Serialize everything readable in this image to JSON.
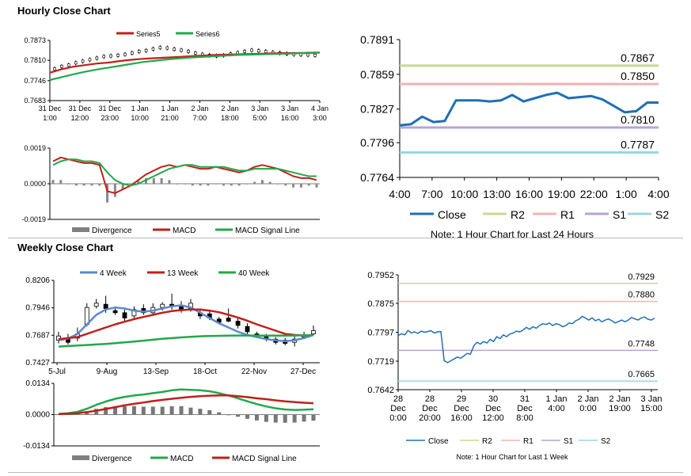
{
  "sections": {
    "hourly_title": "Hourly Close Chart",
    "weekly_title": "Weekly Close Chart"
  },
  "colors": {
    "red": "#c0201a",
    "green": "#22a84a",
    "blue": "#1f6fb4",
    "grey": "#808080",
    "r2": "#c8d98e",
    "r1": "#f0b4b0",
    "s1": "#b4a4d0",
    "s2": "#9ad4e4"
  },
  "chart_data": [
    {
      "id": "hourly_price",
      "type": "line",
      "legend": [
        "Series5",
        "Series6"
      ],
      "x_ticks": [
        [
          "31 Dec",
          "1:00"
        ],
        [
          "31 Dec",
          "12:00"
        ],
        [
          "31 Dec",
          "23:00"
        ],
        [
          "1 Jan",
          "10:00"
        ],
        [
          "1 Jan",
          "21:00"
        ],
        [
          "2 Jan",
          "7:00"
        ],
        [
          "2 Jan",
          "18:00"
        ],
        [
          "3 Jan",
          "5:00"
        ],
        [
          "3 Jan",
          "16:00"
        ],
        [
          "4 Jan",
          "3:00"
        ]
      ],
      "y_ticks": [
        "0.7873",
        "0.7810",
        "0.7746",
        "0.7683"
      ],
      "ylim": [
        0.7683,
        0.7873
      ],
      "series": [
        {
          "name": "Series5",
          "color": "#c0201a",
          "values": [
            0.7771,
            0.7782,
            0.779,
            0.7795,
            0.78,
            0.7803,
            0.7808,
            0.7812,
            0.7815,
            0.7817,
            0.7819,
            0.7821,
            0.7823,
            0.7825,
            0.7827,
            0.7828,
            0.7829,
            0.783,
            0.7831,
            0.7832,
            0.7833,
            0.7833,
            0.7834,
            0.7835
          ]
        },
        {
          "name": "Series6",
          "color": "#22a84a",
          "values": [
            0.7748,
            0.7757,
            0.7766,
            0.7774,
            0.7781,
            0.7787,
            0.7793,
            0.7799,
            0.7805,
            0.7809,
            0.7813,
            0.7816,
            0.7819,
            0.7821,
            0.7823,
            0.7825,
            0.7827,
            0.7828,
            0.7829,
            0.783,
            0.7831,
            0.7832,
            0.7833,
            0.7834
          ]
        }
      ],
      "candles": [
        0.7783,
        0.7791,
        0.7795,
        0.7802,
        0.7807,
        0.7812,
        0.7817,
        0.7822,
        0.7824,
        0.7826,
        0.7829,
        0.7833,
        0.7838,
        0.7841,
        0.7846,
        0.785,
        0.7849,
        0.7845,
        0.7842,
        0.7838,
        0.7833,
        0.7829,
        0.7826,
        0.7824,
        0.7826,
        0.783,
        0.7834,
        0.7838,
        0.7842,
        0.784,
        0.7838,
        0.7835,
        0.7833,
        0.7831,
        0.7829,
        0.7828,
        0.7827,
        0.7826
      ]
    },
    {
      "id": "hourly_macd",
      "type": "line",
      "legend": [
        "Divergence",
        "MACD",
        "MACD Signal Line"
      ],
      "y_ticks": [
        "0.0019",
        "0.0000",
        "-0.0019"
      ],
      "ylim": [
        -0.0019,
        0.0019
      ],
      "series": [
        {
          "name": "MACD",
          "color": "#c0201a",
          "values": [
            0.0012,
            0.0014,
            0.0013,
            0.0012,
            0.0011,
            0.0011,
            0.001,
            -0.0004,
            -0.0005,
            -0.0003,
            -0.0001,
            0.0002,
            0.0005,
            0.0007,
            0.0009,
            0.001,
            0.0009,
            0.001,
            0.0009,
            0.0008,
            0.0008,
            0.0009,
            0.0008,
            0.0007,
            0.0006,
            0.0007,
            0.0009,
            0.001,
            0.0009,
            0.0008,
            0.0006,
            0.0004,
            0.0003,
            0.0003,
            0.0002
          ]
        },
        {
          "name": "MACD Signal Line",
          "color": "#22a84a",
          "values": [
            0.001,
            0.0012,
            0.0013,
            0.0013,
            0.0012,
            0.0012,
            0.0011,
            0.0006,
            0.0002,
            0.0,
            -0.0001,
            0.0,
            0.0002,
            0.0004,
            0.0006,
            0.0008,
            0.0009,
            0.001,
            0.001,
            0.0009,
            0.0009,
            0.0009,
            0.0009,
            0.0008,
            0.0007,
            0.0007,
            0.0008,
            0.0008,
            0.0008,
            0.0008,
            0.0007,
            0.0006,
            0.0005,
            0.0004,
            0.0004
          ]
        },
        {
          "name": "Divergence",
          "color": "#808080",
          "values": [
            0.0002,
            0.0002,
            0.0,
            -0.0001,
            -0.0001,
            -0.0001,
            -0.0001,
            -0.001,
            -0.0007,
            -0.0003,
            0.0,
            0.0002,
            0.0003,
            0.0003,
            0.0003,
            0.0002,
            0.0,
            0.0,
            -0.0001,
            -0.0001,
            -0.0001,
            0.0,
            -0.0001,
            -0.0001,
            -0.0001,
            0.0,
            0.0001,
            0.0002,
            0.0001,
            0.0,
            -0.0001,
            -0.0002,
            -0.0002,
            -0.0001,
            -0.0002
          ]
        }
      ]
    },
    {
      "id": "hourly_levels",
      "type": "line",
      "legend": [
        "Close",
        "R2",
        "R1",
        "S1",
        "S2"
      ],
      "note": "Note: 1 Hour Chart for Last 24 Hours",
      "x_ticks": [
        "4:00",
        "7:00",
        "10:00",
        "13:00",
        "16:00",
        "19:00",
        "22:00",
        "1:00",
        "4:00"
      ],
      "y_ticks": [
        "0.7891",
        "0.7859",
        "0.7827",
        "0.7796",
        "0.7764"
      ],
      "ylim": [
        0.7764,
        0.7891
      ],
      "levels": [
        {
          "name": "R2",
          "value": 0.7867,
          "label": "0.7867",
          "color": "#c8d98e"
        },
        {
          "name": "R1",
          "value": 0.785,
          "label": "0.7850",
          "color": "#f0b4b0"
        },
        {
          "name": "S1",
          "value": 0.781,
          "label": "0.7810",
          "color": "#b4a4d0"
        },
        {
          "name": "S2",
          "value": 0.7787,
          "label": "0.7787",
          "color": "#9ad4e4"
        }
      ],
      "series": [
        {
          "name": "Close",
          "color": "#1f6fb4",
          "values": [
            0.7812,
            0.7813,
            0.782,
            0.7815,
            0.7816,
            0.7835,
            0.7835,
            0.7835,
            0.7834,
            0.7835,
            0.784,
            0.7834,
            0.7837,
            0.784,
            0.7842,
            0.7837,
            0.7838,
            0.7839,
            0.7836,
            0.783,
            0.7824,
            0.7825,
            0.7833,
            0.7833
          ]
        }
      ]
    },
    {
      "id": "weekly_price",
      "type": "line",
      "legend": [
        "4 Week",
        "13 Week",
        "40 Week"
      ],
      "x_ticks": [
        "5-Jul",
        "9-Aug",
        "13-Sep",
        "18-Oct",
        "22-Nov",
        "27-Dec"
      ],
      "y_ticks": [
        "0.8206",
        "0.7946",
        "0.7687",
        "0.7427"
      ],
      "ylim": [
        0.7427,
        0.8206
      ],
      "series": [
        {
          "name": "4 Week",
          "color": "#5a8ad0",
          "values": [
            0.764,
            0.7655,
            0.77,
            0.779,
            0.788,
            0.793,
            0.795,
            0.794,
            0.792,
            0.791,
            0.792,
            0.794,
            0.796,
            0.797,
            0.795,
            0.79,
            0.785,
            0.78,
            0.776,
            0.772,
            0.769,
            0.767,
            0.765,
            0.764,
            0.763,
            0.764,
            0.766,
            0.769
          ]
        },
        {
          "name": "13 Week",
          "color": "#c0201a",
          "values": [
            0.765,
            0.766,
            0.767,
            0.77,
            0.773,
            0.776,
            0.779,
            0.7815,
            0.784,
            0.786,
            0.788,
            0.79,
            0.7915,
            0.7925,
            0.793,
            0.793,
            0.792,
            0.7905,
            0.788,
            0.7855,
            0.7825,
            0.779,
            0.776,
            0.773,
            0.77,
            0.769,
            0.7685,
            0.769
          ]
        },
        {
          "name": "40 Week",
          "color": "#22a84a",
          "values": [
            0.758,
            0.7585,
            0.759,
            0.7595,
            0.76,
            0.7605,
            0.7612,
            0.762,
            0.7628,
            0.7636,
            0.7645,
            0.7653,
            0.766,
            0.7667,
            0.7672,
            0.7677,
            0.768,
            0.7682,
            0.7684,
            0.7685,
            0.7685,
            0.7684,
            0.7683,
            0.7683,
            0.7684,
            0.7685,
            0.7686,
            0.7687
          ]
        }
      ],
      "candles": [
        {
          "o": 0.764,
          "c": 0.768,
          "h": 0.772,
          "l": 0.761
        },
        {
          "o": 0.765,
          "c": 0.762,
          "h": 0.77,
          "l": 0.76
        },
        {
          "o": 0.766,
          "c": 0.77,
          "h": 0.776,
          "l": 0.763
        },
        {
          "o": 0.779,
          "c": 0.795,
          "h": 0.799,
          "l": 0.777
        },
        {
          "o": 0.796,
          "c": 0.799,
          "h": 0.803,
          "l": 0.794
        },
        {
          "o": 0.798,
          "c": 0.794,
          "h": 0.806,
          "l": 0.79
        },
        {
          "o": 0.792,
          "c": 0.79,
          "h": 0.796,
          "l": 0.788
        },
        {
          "o": 0.79,
          "c": 0.785,
          "h": 0.793,
          "l": 0.782
        },
        {
          "o": 0.787,
          "c": 0.793,
          "h": 0.796,
          "l": 0.784
        },
        {
          "o": 0.794,
          "c": 0.79,
          "h": 0.798,
          "l": 0.788
        },
        {
          "o": 0.79,
          "c": 0.795,
          "h": 0.799,
          "l": 0.787
        },
        {
          "o": 0.795,
          "c": 0.798,
          "h": 0.8,
          "l": 0.792
        },
        {
          "o": 0.798,
          "c": 0.796,
          "h": 0.808,
          "l": 0.793
        },
        {
          "o": 0.796,
          "c": 0.792,
          "h": 0.801,
          "l": 0.79
        },
        {
          "o": 0.794,
          "c": 0.799,
          "h": 0.803,
          "l": 0.791
        },
        {
          "o": 0.79,
          "c": 0.787,
          "h": 0.793,
          "l": 0.784
        },
        {
          "o": 0.789,
          "c": 0.785,
          "h": 0.791,
          "l": 0.783
        },
        {
          "o": 0.784,
          "c": 0.781,
          "h": 0.786,
          "l": 0.78
        },
        {
          "o": 0.785,
          "c": 0.782,
          "h": 0.794,
          "l": 0.781
        },
        {
          "o": 0.782,
          "c": 0.778,
          "h": 0.785,
          "l": 0.775
        },
        {
          "o": 0.777,
          "c": 0.772,
          "h": 0.78,
          "l": 0.77
        },
        {
          "o": 0.77,
          "c": 0.768,
          "h": 0.772,
          "l": 0.766
        },
        {
          "o": 0.768,
          "c": 0.765,
          "h": 0.77,
          "l": 0.763
        },
        {
          "o": 0.765,
          "c": 0.762,
          "h": 0.767,
          "l": 0.76
        },
        {
          "o": 0.764,
          "c": 0.761,
          "h": 0.766,
          "l": 0.759
        },
        {
          "o": 0.762,
          "c": 0.765,
          "h": 0.769,
          "l": 0.758
        },
        {
          "o": 0.767,
          "c": 0.769,
          "h": 0.772,
          "l": 0.765
        },
        {
          "o": 0.77,
          "c": 0.773,
          "h": 0.778,
          "l": 0.769
        }
      ]
    },
    {
      "id": "weekly_macd",
      "type": "line",
      "legend": [
        "Divergence",
        "MACD",
        "MACD Signal Line"
      ],
      "y_ticks": [
        "0.0134",
        "0.0000",
        "-0.0134"
      ],
      "ylim": [
        -0.0134,
        0.0134
      ],
      "series": [
        {
          "name": "MACD",
          "color": "#22a84a",
          "values": [
            0.0003,
            0.0006,
            0.0012,
            0.0025,
            0.0042,
            0.0056,
            0.0068,
            0.0076,
            0.0082,
            0.0086,
            0.0092,
            0.0097,
            0.0104,
            0.0108,
            0.0106,
            0.0104,
            0.01,
            0.0092,
            0.0082,
            0.007,
            0.0057,
            0.0045,
            0.0035,
            0.0027,
            0.0022,
            0.002,
            0.0021,
            0.0023
          ]
        },
        {
          "name": "MACD Signal Line",
          "color": "#c0201a",
          "values": [
            0.0002,
            0.0004,
            0.0006,
            0.0011,
            0.0017,
            0.0024,
            0.0032,
            0.004,
            0.0046,
            0.0052,
            0.0058,
            0.0063,
            0.0068,
            0.0072,
            0.0076,
            0.0079,
            0.0081,
            0.0082,
            0.0082,
            0.0079,
            0.0075,
            0.007,
            0.0066,
            0.0061,
            0.0057,
            0.0054,
            0.0051,
            0.0049
          ]
        },
        {
          "name": "Divergence",
          "color": "#808080",
          "values": [
            0.0001,
            0.0002,
            0.0006,
            0.0014,
            0.0025,
            0.0032,
            0.0036,
            0.0036,
            0.0036,
            0.0034,
            0.0034,
            0.0034,
            0.0036,
            0.0036,
            0.003,
            0.0025,
            0.0019,
            0.001,
            0.0,
            -0.0009,
            -0.0018,
            -0.0025,
            -0.0031,
            -0.0034,
            -0.0035,
            -0.0034,
            -0.003,
            -0.0026
          ]
        }
      ]
    },
    {
      "id": "weekly_levels",
      "type": "line",
      "legend": [
        "Close",
        "R2",
        "R1",
        "S1",
        "S2"
      ],
      "note": "Note: 1 Hour Chart for Last 1 Week",
      "x_ticks": [
        [
          "28",
          "Dec",
          "0:00"
        ],
        [
          "28",
          "Dec",
          "20:00"
        ],
        [
          "29",
          "Dec",
          "16:00"
        ],
        [
          "30",
          "Dec",
          "12:00"
        ],
        [
          "31",
          "Dec",
          "8:00"
        ],
        [
          "1 Jan",
          "4:00"
        ],
        [
          "2 Jan",
          "0:00"
        ],
        [
          "2 Jan",
          "19:00"
        ],
        [
          "3 Jan",
          "15:00"
        ]
      ],
      "y_ticks": [
        "0.7952",
        "0.7875",
        "0.7797",
        "0.7719",
        "0.7642"
      ],
      "ylim": [
        0.7642,
        0.7952
      ],
      "levels": [
        {
          "name": "R2",
          "value": 0.7929,
          "label": "0.7929",
          "color": "#c8d98e"
        },
        {
          "name": "R1",
          "value": 0.788,
          "label": "0.7880",
          "color": "#f0b4b0"
        },
        {
          "name": "S1",
          "value": 0.7748,
          "label": "0.7748",
          "color": "#b4a4d0"
        },
        {
          "name": "S2",
          "value": 0.7665,
          "label": "0.7665",
          "color": "#9ad4e4"
        }
      ],
      "series": [
        {
          "name": "Close",
          "color": "#1f6fb4",
          "values": [
            0.7788,
            0.7793,
            0.779,
            0.7802,
            0.7795,
            0.7798,
            0.7794,
            0.78,
            0.7797,
            0.7799,
            0.7801,
            0.7795,
            0.7798,
            0.7799,
            0.772,
            0.7715,
            0.772,
            0.7725,
            0.773,
            0.7727,
            0.7733,
            0.774,
            0.7738,
            0.776,
            0.777,
            0.7765,
            0.7772,
            0.7768,
            0.7778,
            0.7772,
            0.7785,
            0.778,
            0.779,
            0.7785,
            0.7792,
            0.7795,
            0.78,
            0.7798,
            0.7803,
            0.781,
            0.7805,
            0.7812,
            0.7808,
            0.7815,
            0.782,
            0.7818,
            0.7822,
            0.7815,
            0.782,
            0.7818,
            0.7812,
            0.7815,
            0.7822,
            0.782,
            0.7828,
            0.7832,
            0.784,
            0.7835,
            0.783,
            0.7836,
            0.7828,
            0.7832,
            0.7825,
            0.783,
            0.7833,
            0.7828,
            0.7822,
            0.7826,
            0.783,
            0.7825,
            0.783,
            0.7837,
            0.7833,
            0.783,
            0.7836,
            0.7838,
            0.7832,
            0.783,
            0.7835
          ]
        }
      ]
    }
  ]
}
